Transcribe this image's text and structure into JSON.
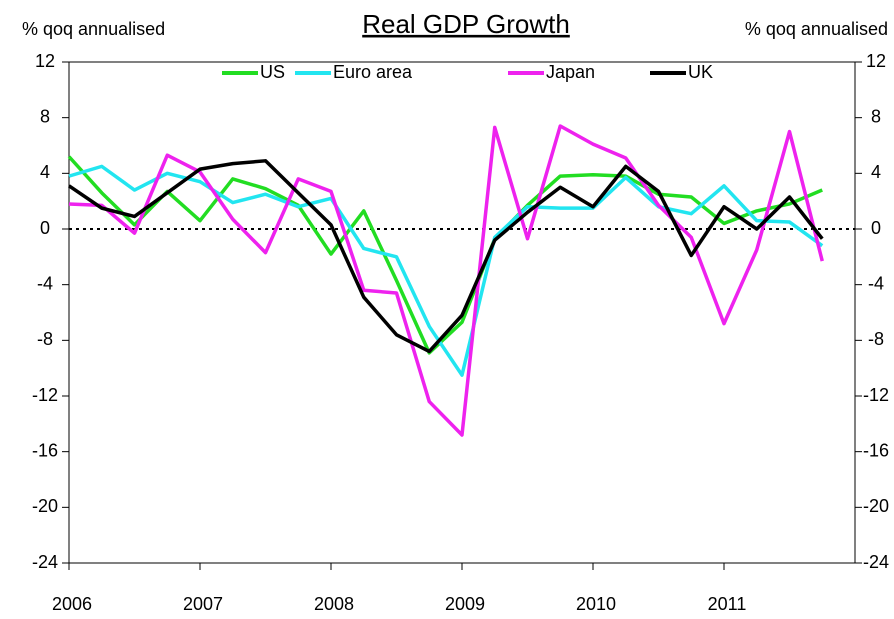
{
  "chart_data": {
    "type": "line",
    "title": "Real GDP Growth",
    "y_label": "% qoq annualised",
    "y2_label": "% qoq annualised",
    "x": [
      2006,
      2006.25,
      2006.5,
      2006.75,
      2007,
      2007.25,
      2007.5,
      2007.75,
      2008,
      2008.25,
      2008.5,
      2008.75,
      2009,
      2009.25,
      2009.5,
      2009.75,
      2010,
      2010.25,
      2010.5,
      2010.75,
      2011,
      2011.25,
      2011.5,
      2011.75
    ],
    "xlim": [
      2006,
      2012
    ],
    "xticks": [
      2006,
      2007,
      2008,
      2009,
      2010,
      2011
    ],
    "ylim": [
      -24,
      12
    ],
    "yticks": [
      -24,
      -20,
      -16,
      -12,
      -8,
      -4,
      0,
      4,
      8,
      12
    ],
    "y2lim": [
      -24,
      12
    ],
    "y2ticks": [
      -24,
      -20,
      -16,
      -12,
      -8,
      -4,
      0,
      4,
      8,
      12
    ],
    "zero_line": true,
    "series": [
      {
        "name": "US",
        "color": "#22dd22",
        "values": [
          5.2,
          2.6,
          0.3,
          2.7,
          0.6,
          3.6,
          2.9,
          1.7,
          -1.8,
          1.3,
          -3.7,
          -8.9,
          -6.7,
          -0.7,
          1.7,
          3.8,
          3.9,
          3.8,
          2.5,
          2.3,
          0.4,
          1.3,
          1.8,
          2.8
        ]
      },
      {
        "name": "Euro area",
        "color": "#22e5f0",
        "values": [
          3.8,
          4.5,
          2.8,
          4.0,
          3.4,
          1.9,
          2.5,
          1.6,
          2.2,
          -1.4,
          -2.0,
          -7.0,
          -10.5,
          -0.6,
          1.6,
          1.5,
          1.5,
          3.7,
          1.6,
          1.1,
          3.1,
          0.6,
          0.5,
          -1.2
        ]
      },
      {
        "name": "Japan",
        "color": "#ee22ee",
        "values": [
          1.8,
          1.7,
          -0.3,
          5.3,
          4.1,
          0.7,
          -1.7,
          3.6,
          2.7,
          -4.4,
          -4.6,
          -12.4,
          -14.8,
          7.3,
          -0.7,
          7.4,
          6.1,
          5.1,
          1.7,
          -0.6,
          -6.8,
          -1.5,
          7.0,
          -2.3
        ]
      },
      {
        "name": "UK",
        "color": "#000000",
        "values": [
          3.1,
          1.5,
          0.9,
          2.6,
          4.3,
          4.7,
          4.9,
          2.6,
          0.3,
          -4.9,
          -7.6,
          -8.8,
          -6.2,
          -0.8,
          1.2,
          3.0,
          1.6,
          4.5,
          2.7,
          -1.9,
          1.6,
          0.0,
          2.3,
          -0.7
        ]
      }
    ]
  }
}
